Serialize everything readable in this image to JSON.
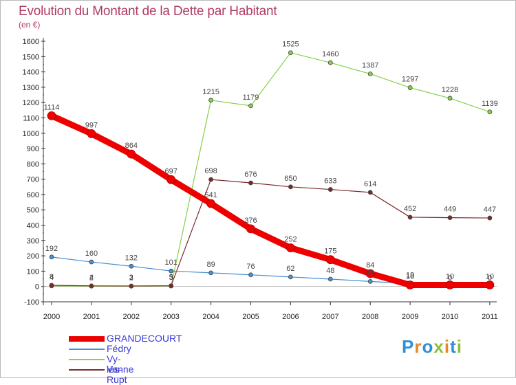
{
  "title": "Evolution du Montant de la Dette par Habitant",
  "unit": "(en €)",
  "logo": {
    "text": "Proxiti",
    "letters": [
      "P",
      "r",
      "o",
      "x",
      "i",
      "t",
      "i"
    ],
    "colors": [
      "#2f8fd8",
      "#e8872a",
      "#2f8fd8",
      "#8bbf3a",
      "#e8872a",
      "#2f8fd8",
      "#8bbf3a"
    ]
  },
  "chart_data": {
    "type": "line",
    "x": [
      "2000",
      "2001",
      "2002",
      "2003",
      "2004",
      "2005",
      "2006",
      "2007",
      "2008",
      "2009",
      "2010",
      "2011"
    ],
    "ylim": [
      -100,
      1600
    ],
    "yticks": [
      -100,
      0,
      100,
      200,
      300,
      400,
      500,
      600,
      700,
      800,
      900,
      1000,
      1100,
      1200,
      1300,
      1400,
      1500,
      1600
    ],
    "grid": false,
    "legend_position": "bottom-left",
    "series": [
      {
        "name": "GRANDECOURT",
        "color": "#ee0000",
        "width": 9,
        "values": [
          1114,
          997,
          864,
          697,
          541,
          376,
          252,
          175,
          84,
          10,
          10,
          10
        ],
        "labels": [
          "1114",
          "997",
          "864",
          "697",
          "541",
          "376",
          "252",
          "175",
          "84",
          "10",
          "10",
          "10"
        ]
      },
      {
        "name": "Fédry",
        "color": "#4a8fd0",
        "width": 1.2,
        "values": [
          192,
          160,
          132,
          101,
          89,
          76,
          62,
          48,
          33,
          19,
          0,
          0
        ],
        "labels": [
          "192",
          "160",
          "132",
          "101",
          "89",
          "76",
          "62",
          "48",
          "33",
          "19",
          "0",
          "0"
        ]
      },
      {
        "name": "Vy-lès-Rupt",
        "color": "#86d04a",
        "width": 1.2,
        "values": [
          4,
          2,
          2,
          3,
          1215,
          1179,
          1525,
          1460,
          1387,
          1297,
          1228,
          1139
        ],
        "labels": [
          "4",
          "2",
          "2",
          "3",
          "1215",
          "1179",
          "1525",
          "1460",
          "1387",
          "1297",
          "1228",
          "1139"
        ]
      },
      {
        "name": "Vanne",
        "color": "#7a2a2a",
        "width": 1.2,
        "values": [
          8,
          4,
          3,
          5,
          698,
          676,
          650,
          633,
          614,
          452,
          449,
          447
        ],
        "labels": [
          "8",
          "4",
          "3",
          "5",
          "698",
          "676",
          "650",
          "633",
          "614",
          "452",
          "449",
          "447"
        ]
      }
    ]
  }
}
